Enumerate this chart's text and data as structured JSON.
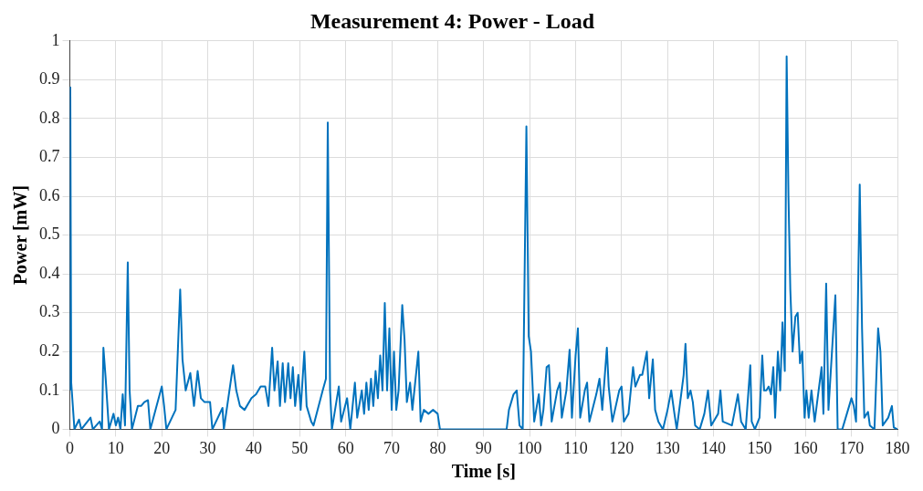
{
  "chart_data": {
    "type": "line",
    "title": "Measurement 4: Power - Load",
    "xlabel": "Time [s]",
    "ylabel": "Power [mW]",
    "xlim": [
      0,
      180
    ],
    "xticks": [
      0,
      10,
      20,
      30,
      40,
      50,
      60,
      70,
      80,
      90,
      100,
      110,
      120,
      130,
      140,
      150,
      160,
      170,
      180
    ],
    "ylim": [
      0,
      1
    ],
    "yticks": [
      0,
      0.1,
      0.2,
      0.3,
      0.4,
      0.5,
      0.6,
      0.7,
      0.8,
      0.9,
      1
    ],
    "grid": true,
    "legend": false,
    "marker": "none",
    "line_style": "solid",
    "series": [
      {
        "color": "#0072bd",
        "x": [
          0,
          0.1,
          0.3,
          1,
          2,
          2.5,
          4.5,
          5,
          6.5,
          7,
          7.3,
          7.8,
          8.5,
          9.5,
          10,
          10.5,
          11,
          11.5,
          12,
          12.6,
          13,
          13.5,
          14.8,
          15.5,
          16.2,
          17,
          17.5,
          20,
          20.5,
          21,
          23,
          24,
          24.5,
          25.2,
          26.2,
          27,
          27.8,
          28.5,
          29.3,
          30.5,
          31,
          33.2,
          33.5,
          35.5,
          36.2,
          37,
          38,
          39.5,
          40.5,
          41.5,
          42.5,
          43.2,
          44,
          44.5,
          45.2,
          45.7,
          46.3,
          46.8,
          47.5,
          48,
          48.5,
          49,
          49.7,
          50.2,
          51,
          51.5,
          52.5,
          53,
          55,
          55.7,
          56.1,
          56.6,
          57,
          58.5,
          59,
          60.3,
          61,
          62,
          62.5,
          63.5,
          64,
          64.5,
          65,
          65.5,
          66,
          66.5,
          67,
          67.5,
          68,
          68.5,
          69,
          69.5,
          70,
          70.5,
          71,
          71.5,
          72.3,
          72.8,
          73.3,
          74,
          74.5,
          75.8,
          76.3,
          77,
          78,
          79,
          80,
          80.5,
          95,
          95.5,
          96.5,
          97.2,
          97.8,
          98.5,
          99.3,
          99.8,
          100.3,
          101,
          102,
          102.5,
          103,
          103.7,
          104.2,
          104.8,
          106,
          106.6,
          107,
          108,
          108.7,
          109.2,
          110,
          110.5,
          111,
          112,
          112.5,
          113,
          114.5,
          115.2,
          115.8,
          116.8,
          117.2,
          118,
          119.5,
          120,
          120.5,
          121.5,
          122,
          122.5,
          123,
          124,
          124.5,
          125.5,
          126,
          126.8,
          127.3,
          128,
          129,
          130,
          130.8,
          131.5,
          132,
          133.5,
          133.9,
          134.4,
          135,
          135.5,
          136,
          137,
          138,
          138.8,
          139.5,
          141,
          141.5,
          142,
          144,
          144.5,
          145.3,
          146,
          147,
          148,
          148.3,
          149,
          150,
          150.6,
          151,
          151.5,
          152,
          152.5,
          153,
          153.4,
          154,
          154.5,
          155,
          155.5,
          155.9,
          156.3,
          156.7,
          157.2,
          157.8,
          158.3,
          158.8,
          159.3,
          159.8,
          160.2,
          160.7,
          161.3,
          162,
          163.5,
          163.9,
          164.5,
          165,
          166.5,
          167,
          168,
          170,
          170.5,
          171,
          171.8,
          172.3,
          172.8,
          173.6,
          174,
          175,
          175.8,
          176.3,
          176.8,
          178,
          178.8,
          179.2,
          180
        ],
        "values": [
          0.1,
          0.88,
          0.12,
          0,
          0.025,
          0,
          0.03,
          0,
          0.02,
          0,
          0.21,
          0.13,
          0,
          0.04,
          0.01,
          0.03,
          0,
          0.09,
          0.01,
          0.43,
          0.1,
          0,
          0.06,
          0.06,
          0.07,
          0.075,
          0,
          0.11,
          0.06,
          0,
          0.05,
          0.36,
          0.18,
          0.1,
          0.145,
          0.06,
          0.15,
          0.08,
          0.07,
          0.07,
          0,
          0.055,
          0,
          0.165,
          0.1,
          0.06,
          0.05,
          0.08,
          0.09,
          0.11,
          0.11,
          0.06,
          0.21,
          0.1,
          0.175,
          0.06,
          0.17,
          0.07,
          0.17,
          0.08,
          0.16,
          0.06,
          0.14,
          0.05,
          0.2,
          0.06,
          0.02,
          0.01,
          0.1,
          0.13,
          0.79,
          0.1,
          0,
          0.11,
          0.02,
          0.08,
          0,
          0.12,
          0.03,
          0.1,
          0.04,
          0.12,
          0.05,
          0.13,
          0.06,
          0.15,
          0.08,
          0.19,
          0.1,
          0.325,
          0.1,
          0.26,
          0.05,
          0.2,
          0.05,
          0.1,
          0.32,
          0.23,
          0.07,
          0.12,
          0.05,
          0.2,
          0.02,
          0.05,
          0.04,
          0.05,
          0.04,
          0,
          0,
          0.05,
          0.09,
          0.1,
          0.01,
          0,
          0.78,
          0.24,
          0.2,
          0.02,
          0.09,
          0.01,
          0.05,
          0.16,
          0.165,
          0.02,
          0.1,
          0.12,
          0.03,
          0.1,
          0.205,
          0.03,
          0.19,
          0.26,
          0.03,
          0.1,
          0.12,
          0.02,
          0.09,
          0.13,
          0.05,
          0.21,
          0.11,
          0.02,
          0.1,
          0.11,
          0.02,
          0.04,
          0.1,
          0.16,
          0.11,
          0.14,
          0.14,
          0.2,
          0.08,
          0.18,
          0.05,
          0.02,
          0,
          0.05,
          0.1,
          0.04,
          0,
          0.14,
          0.22,
          0.08,
          0.1,
          0.07,
          0.01,
          0,
          0.04,
          0.1,
          0.01,
          0.04,
          0.1,
          0.02,
          0.01,
          0.04,
          0.09,
          0.02,
          0,
          0.165,
          0.02,
          0,
          0.03,
          0.19,
          0.1,
          0.1,
          0.11,
          0.09,
          0.16,
          0.03,
          0.2,
          0.1,
          0.275,
          0.15,
          0.96,
          0.6,
          0.36,
          0.2,
          0.29,
          0.3,
          0.17,
          0.2,
          0.03,
          0.1,
          0.03,
          0.1,
          0.02,
          0.16,
          0.04,
          0.375,
          0.05,
          0.345,
          0,
          0,
          0.08,
          0.06,
          0.02,
          0.63,
          0.26,
          0.03,
          0.045,
          0.01,
          0,
          0.26,
          0.2,
          0.01,
          0.03,
          0.06,
          0.005,
          0
        ]
      }
    ]
  }
}
